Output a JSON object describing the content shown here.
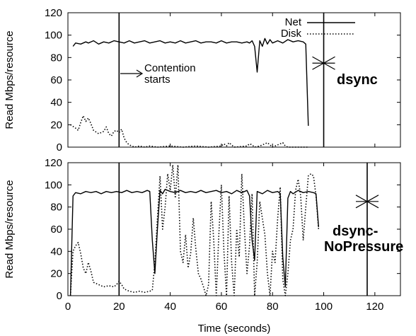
{
  "chart_data": [
    {
      "type": "line",
      "ylabel": "Read Mbps/resource",
      "xlabel": "",
      "xlim": [
        0,
        130
      ],
      "ylim": [
        0,
        120
      ],
      "xticks": [
        "0",
        "20",
        "40",
        "60",
        "80",
        "100",
        "120"
      ],
      "yticks": [
        "0",
        "20",
        "40",
        "60",
        "80",
        "100",
        "120"
      ],
      "legend": [
        "Net",
        "Disk"
      ],
      "legend_position": "top-right",
      "annotations": {
        "contention_line1": "Contention",
        "contention_line2": "starts",
        "label": "dsync"
      },
      "vlines": [
        20,
        100
      ],
      "marker": {
        "x": 100,
        "y": 75
      },
      "series": [
        {
          "name": "Net",
          "style": "solid",
          "points": [
            [
              2,
              90
            ],
            [
              3,
              93
            ],
            [
              5,
              92
            ],
            [
              7,
              94
            ],
            [
              8,
              93
            ],
            [
              10,
              95
            ],
            [
              12,
              92
            ],
            [
              14,
              94
            ],
            [
              16,
              93
            ],
            [
              18,
              95
            ],
            [
              20,
              94
            ],
            [
              22,
              93
            ],
            [
              24,
              95
            ],
            [
              26,
              93
            ],
            [
              28,
              94
            ],
            [
              30,
              95
            ],
            [
              32,
              93
            ],
            [
              34,
              94
            ],
            [
              36,
              95
            ],
            [
              38,
              93
            ],
            [
              40,
              94
            ],
            [
              42,
              93
            ],
            [
              44,
              95
            ],
            [
              46,
              93
            ],
            [
              48,
              94
            ],
            [
              50,
              95
            ],
            [
              52,
              93
            ],
            [
              54,
              94
            ],
            [
              56,
              94
            ],
            [
              58,
              93
            ],
            [
              60,
              95
            ],
            [
              62,
              93
            ],
            [
              64,
              94
            ],
            [
              66,
              94
            ],
            [
              68,
              93
            ],
            [
              70,
              94
            ],
            [
              71,
              93
            ],
            [
              72,
              95
            ],
            [
              73,
              90
            ],
            [
              74,
              67
            ],
            [
              75,
              95
            ],
            [
              76,
              90
            ],
            [
              77,
              97
            ],
            [
              78,
              92
            ],
            [
              79,
              96
            ],
            [
              80,
              93
            ],
            [
              82,
              95
            ],
            [
              84,
              93
            ],
            [
              86,
              96
            ],
            [
              88,
              94
            ],
            [
              90,
              95
            ],
            [
              92,
              94
            ],
            [
              93,
              92
            ],
            [
              94,
              19
            ]
          ]
        },
        {
          "name": "Disk",
          "style": "dotted",
          "points": [
            [
              1,
              20
            ],
            [
              3,
              17
            ],
            [
              4,
              15
            ],
            [
              5,
              22
            ],
            [
              6,
              28
            ],
            [
              7,
              23
            ],
            [
              8,
              26
            ],
            [
              9,
              21
            ],
            [
              10,
              15
            ],
            [
              12,
              12
            ],
            [
              14,
              14
            ],
            [
              15,
              18
            ],
            [
              16,
              12
            ],
            [
              17,
              10
            ],
            [
              18,
              14
            ],
            [
              19,
              15
            ],
            [
              20,
              13
            ],
            [
              21,
              16
            ],
            [
              22,
              8
            ],
            [
              23,
              4
            ],
            [
              24,
              2
            ],
            [
              25,
              1
            ],
            [
              26,
              0
            ],
            [
              28,
              1
            ],
            [
              30,
              0
            ],
            [
              32,
              1
            ],
            [
              35,
              0
            ],
            [
              40,
              1
            ],
            [
              45,
              0
            ],
            [
              50,
              1
            ],
            [
              55,
              0
            ],
            [
              60,
              1
            ],
            [
              61,
              3
            ],
            [
              62,
              1
            ],
            [
              63,
              4
            ],
            [
              64,
              2
            ],
            [
              65,
              0
            ],
            [
              70,
              1
            ],
            [
              71,
              3
            ],
            [
              72,
              2
            ],
            [
              73,
              0
            ],
            [
              75,
              1
            ],
            [
              77,
              3
            ],
            [
              78,
              4
            ],
            [
              79,
              2
            ],
            [
              80,
              0
            ],
            [
              82,
              2
            ],
            [
              84,
              4
            ],
            [
              85,
              1
            ],
            [
              86,
              0
            ],
            [
              90,
              0
            ],
            [
              94,
              0
            ]
          ]
        }
      ]
    },
    {
      "type": "line",
      "ylabel": "Read Mbps/resource",
      "xlabel": "Time (seconds)",
      "xlim": [
        0,
        130
      ],
      "ylim": [
        0,
        120
      ],
      "xticks": [
        "0",
        "20",
        "40",
        "60",
        "80",
        "100",
        "120"
      ],
      "yticks": [
        "0",
        "20",
        "40",
        "60",
        "80",
        "100",
        "120"
      ],
      "annotations": {
        "label_line1": "dsync-",
        "label_line2": "NoPressure"
      },
      "vlines": [
        20,
        117
      ],
      "marker": {
        "x": 117,
        "y": 85
      },
      "series": [
        {
          "name": "Net",
          "style": "solid",
          "points": [
            [
              1,
              0
            ],
            [
              2,
              90
            ],
            [
              3,
              93
            ],
            [
              5,
              92
            ],
            [
              7,
              94
            ],
            [
              9,
              93
            ],
            [
              11,
              94
            ],
            [
              13,
              92
            ],
            [
              15,
              94
            ],
            [
              17,
              93
            ],
            [
              19,
              94
            ],
            [
              21,
              93
            ],
            [
              23,
              95
            ],
            [
              25,
              93
            ],
            [
              27,
              94
            ],
            [
              29,
              93
            ],
            [
              31,
              95
            ],
            [
              32,
              94
            ],
            [
              33,
              50
            ],
            [
              34,
              20
            ],
            [
              35,
              60
            ],
            [
              36,
              95
            ],
            [
              37,
              92
            ],
            [
              38,
              96
            ],
            [
              40,
              94
            ],
            [
              42,
              93
            ],
            [
              44,
              95
            ],
            [
              46,
              93
            ],
            [
              48,
              94
            ],
            [
              50,
              93
            ],
            [
              52,
              95
            ],
            [
              54,
              93
            ],
            [
              56,
              94
            ],
            [
              58,
              95
            ],
            [
              60,
              93
            ],
            [
              62,
              94
            ],
            [
              64,
              92
            ],
            [
              66,
              95
            ],
            [
              68,
              93
            ],
            [
              70,
              95
            ],
            [
              71,
              90
            ],
            [
              72,
              50
            ],
            [
              73,
              32
            ],
            [
              74,
              94
            ],
            [
              76,
              92
            ],
            [
              78,
              95
            ],
            [
              80,
              93
            ],
            [
              82,
              94
            ],
            [
              83,
              92
            ],
            [
              84,
              35
            ],
            [
              85,
              8
            ],
            [
              86,
              88
            ],
            [
              87,
              94
            ],
            [
              88,
              92
            ],
            [
              90,
              95
            ],
            [
              92,
              93
            ],
            [
              94,
              94
            ],
            [
              96,
              93
            ],
            [
              97,
              92
            ],
            [
              98,
              62
            ]
          ]
        },
        {
          "name": "Disk",
          "style": "dotted",
          "points": [
            [
              1,
              0
            ],
            [
              2,
              40
            ],
            [
              3,
              45
            ],
            [
              4,
              48
            ],
            [
              5,
              38
            ],
            [
              6,
              25
            ],
            [
              7,
              20
            ],
            [
              8,
              30
            ],
            [
              9,
              22
            ],
            [
              10,
              12
            ],
            [
              12,
              10
            ],
            [
              14,
              8
            ],
            [
              16,
              9
            ],
            [
              18,
              8
            ],
            [
              19,
              10
            ],
            [
              20,
              13
            ],
            [
              21,
              10
            ],
            [
              22,
              6
            ],
            [
              24,
              4
            ],
            [
              26,
              3
            ],
            [
              28,
              4
            ],
            [
              30,
              3
            ],
            [
              32,
              4
            ],
            [
              33,
              5
            ],
            [
              34,
              30
            ],
            [
              35,
              70
            ],
            [
              36,
              108
            ],
            [
              37,
              60
            ],
            [
              38,
              80
            ],
            [
              39,
              110
            ],
            [
              40,
              95
            ],
            [
              41,
              118
            ],
            [
              42,
              88
            ],
            [
              43,
              118
            ],
            [
              44,
              40
            ],
            [
              45,
              30
            ],
            [
              46,
              55
            ],
            [
              47,
              25
            ],
            [
              48,
              38
            ],
            [
              49,
              70
            ],
            [
              50,
              42
            ],
            [
              51,
              20
            ],
            [
              52,
              15
            ],
            [
              53,
              8
            ],
            [
              54,
              0
            ],
            [
              55,
              10
            ],
            [
              56,
              85
            ],
            [
              57,
              50
            ],
            [
              58,
              0
            ],
            [
              59,
              55
            ],
            [
              60,
              100
            ],
            [
              61,
              40
            ],
            [
              62,
              0
            ],
            [
              63,
              90
            ],
            [
              64,
              30
            ],
            [
              65,
              0
            ],
            [
              66,
              60
            ],
            [
              67,
              35
            ],
            [
              68,
              110
            ],
            [
              69,
              60
            ],
            [
              70,
              20
            ],
            [
              71,
              45
            ],
            [
              72,
              92
            ],
            [
              73,
              0
            ],
            [
              74,
              30
            ],
            [
              75,
              85
            ],
            [
              76,
              70
            ],
            [
              77,
              55
            ],
            [
              78,
              20
            ],
            [
              79,
              0
            ],
            [
              80,
              40
            ],
            [
              81,
              30
            ],
            [
              82,
              70
            ],
            [
              83,
              98
            ],
            [
              84,
              15
            ],
            [
              85,
              0
            ],
            [
              86,
              20
            ],
            [
              87,
              50
            ],
            [
              88,
              60
            ],
            [
              89,
              95
            ],
            [
              90,
              105
            ],
            [
              91,
              90
            ],
            [
              92,
              50
            ],
            [
              93,
              80
            ],
            [
              94,
              108
            ],
            [
              95,
              110
            ],
            [
              96,
              108
            ],
            [
              97,
              90
            ],
            [
              98,
              60
            ]
          ]
        }
      ]
    }
  ]
}
